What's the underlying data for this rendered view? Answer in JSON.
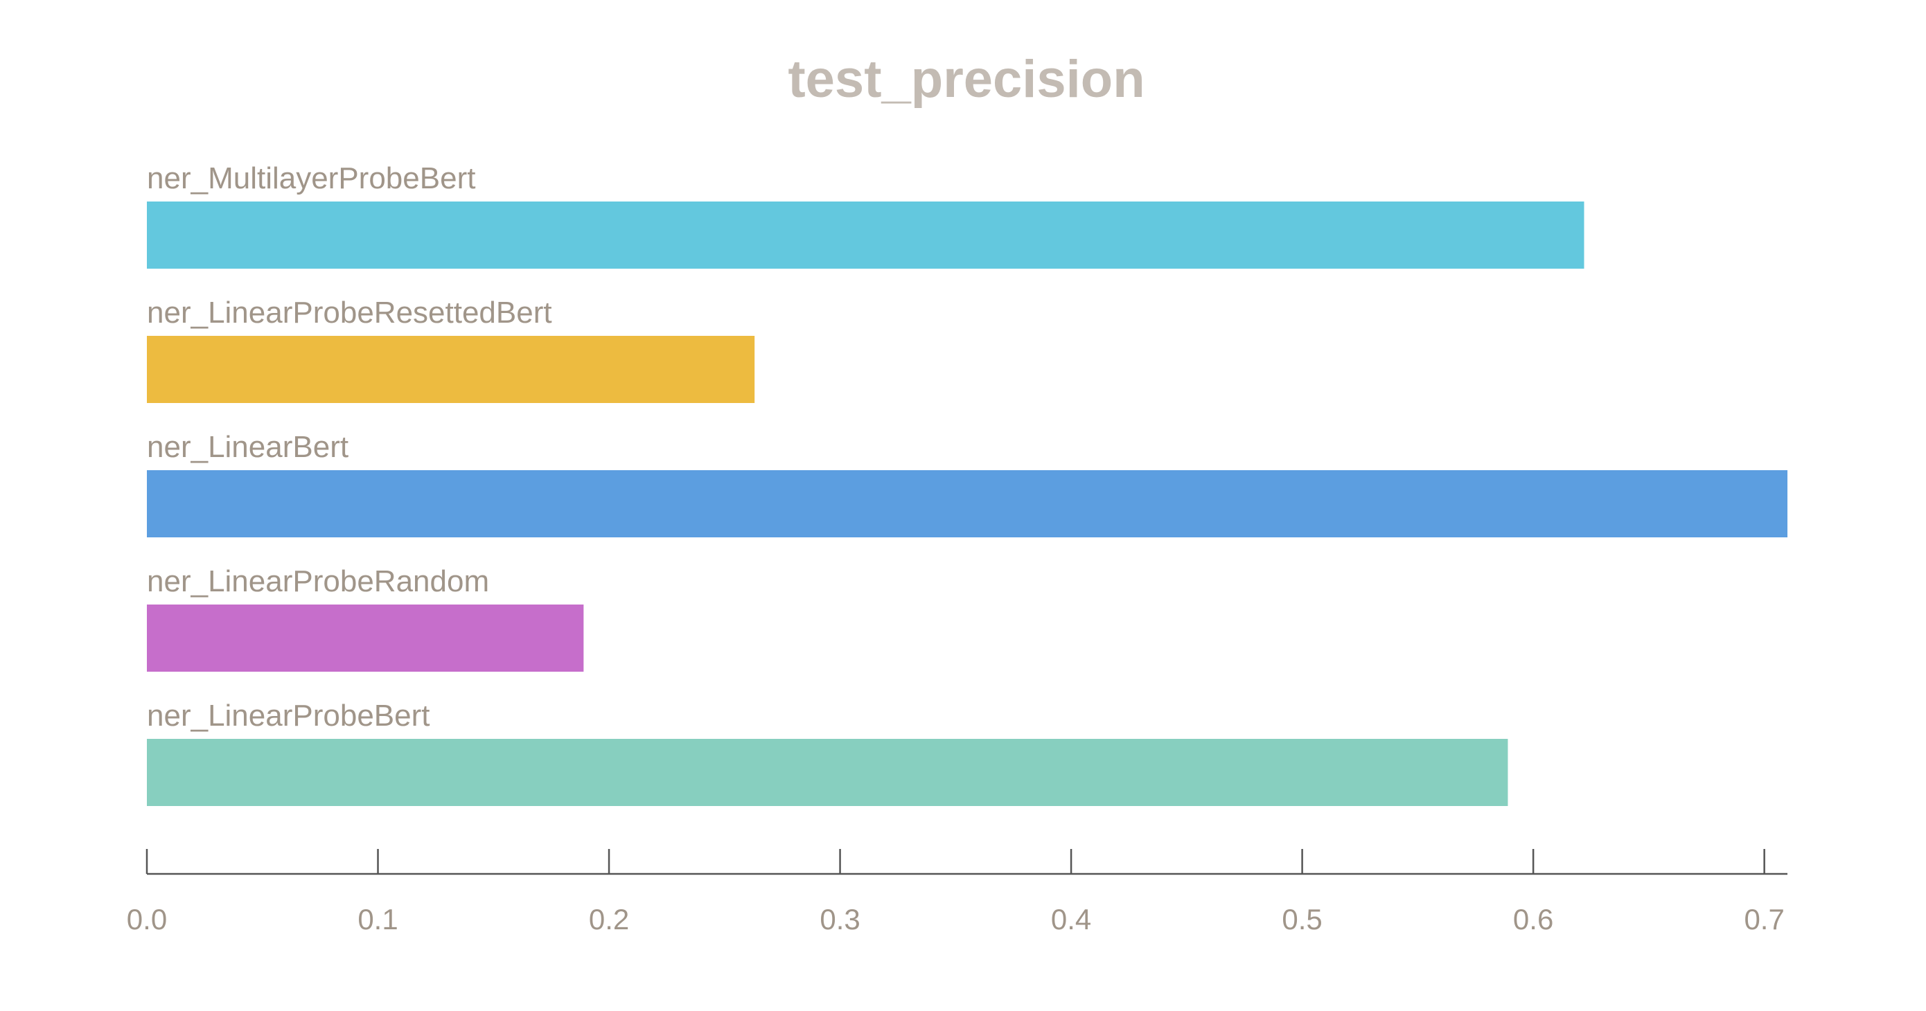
{
  "chart_data": {
    "type": "bar",
    "orientation": "horizontal",
    "title": "test_precision",
    "xlabel": "",
    "ylabel": "",
    "xlim": [
      0,
      0.71
    ],
    "grid": false,
    "categories": [
      "ner_MultilayerProbeBert",
      "ner_LinearProbeResettedBert",
      "ner_LinearBert",
      "ner_LinearProbeRandom",
      "ner_LinearProbeBert"
    ],
    "values": [
      0.622,
      0.263,
      0.71,
      0.189,
      0.589
    ],
    "colors": [
      "#63c8de",
      "#edbb40",
      "#5c9ee0",
      "#c66ecb",
      "#87cfbf"
    ],
    "ticks": [
      0.0,
      0.1,
      0.2,
      0.3,
      0.4,
      0.5,
      0.6,
      0.7
    ],
    "tick_labels": [
      "0.0",
      "0.1",
      "0.2",
      "0.3",
      "0.4",
      "0.5",
      "0.6",
      "0.7"
    ]
  }
}
